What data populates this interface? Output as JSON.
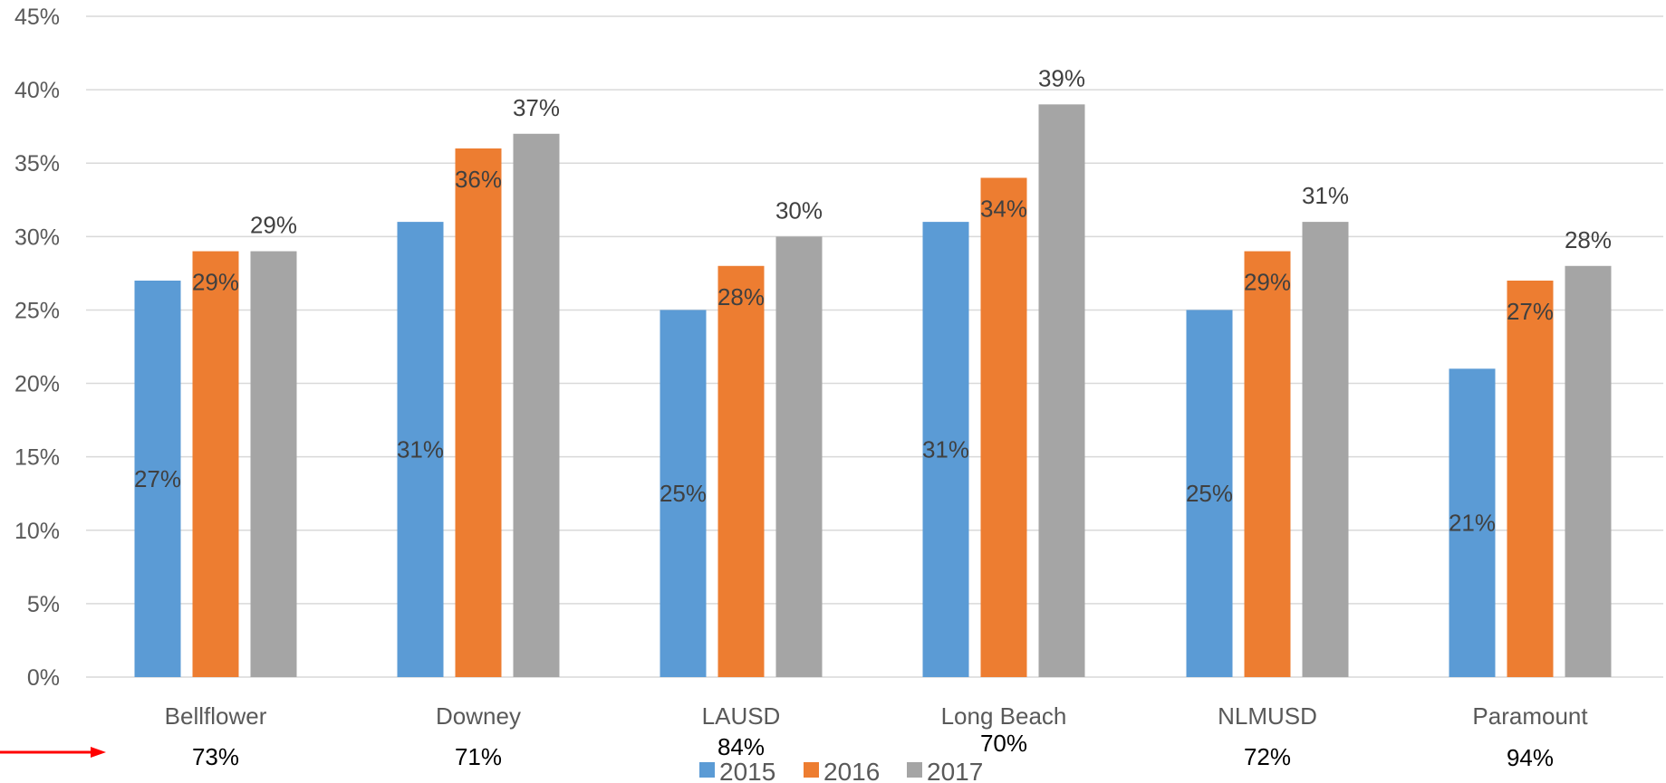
{
  "chart_data": {
    "type": "bar",
    "categories": [
      "Bellflower",
      "Downey",
      "LAUSD",
      "Long Beach",
      "NLMUSD",
      "Paramount"
    ],
    "series": [
      {
        "name": "2015",
        "values": [
          27,
          31,
          25,
          31,
          25,
          21
        ],
        "labels": [
          "27%",
          "31%",
          "25%",
          "31%",
          "25%",
          "21%"
        ],
        "color": "#5B9BD5"
      },
      {
        "name": "2016",
        "values": [
          29,
          36,
          28,
          34,
          29,
          27
        ],
        "labels": [
          "29%",
          "36%",
          "28%",
          "34%",
          "29%",
          "27%"
        ],
        "color": "#ED7D31"
      },
      {
        "name": "2017",
        "values": [
          29,
          37,
          30,
          39,
          31,
          28
        ],
        "labels": [
          "29%",
          "37%",
          "30%",
          "39%",
          "31%",
          "28%"
        ],
        "color": "#A5A5A5"
      }
    ],
    "extra_labels": [
      "73%",
      "71%",
      "84%",
      "70%",
      "72%",
      "94%"
    ],
    "yticks": [
      "0%",
      "5%",
      "10%",
      "15%",
      "20%",
      "25%",
      "30%",
      "35%",
      "40%",
      "45%"
    ],
    "ylim": [
      0,
      45
    ],
    "ytick_step": 5,
    "grid": true,
    "legend_position": "bottom",
    "title": "",
    "xlabel": "",
    "ylabel": "",
    "annotation_arrow_color": "#FF0000",
    "gridline_color": "#D9D9D9"
  }
}
